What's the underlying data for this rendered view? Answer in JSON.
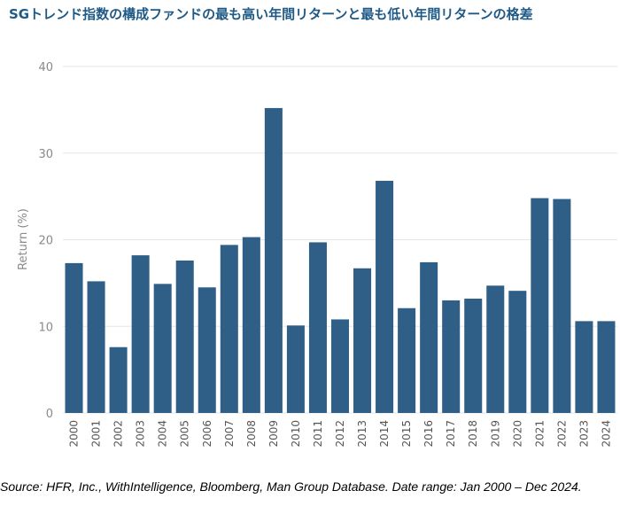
{
  "chart_data": {
    "type": "bar",
    "title": "SGトレンド指数の構成ファンドの最も高い年間リターンと最も低い年間リターンの格差",
    "xlabel": "",
    "ylabel": "Return (%)",
    "ylim": [
      0,
      40
    ],
    "yticks": [
      0,
      10,
      20,
      30,
      40
    ],
    "grid": true,
    "legend": "none",
    "categories": [
      "2000",
      "2001",
      "2002",
      "2003",
      "2004",
      "2005",
      "2006",
      "2007",
      "2008",
      "2009",
      "2010",
      "2011",
      "2012",
      "2013",
      "2014",
      "2015",
      "2016",
      "2017",
      "2018",
      "2019",
      "2020",
      "2021",
      "2022",
      "2023",
      "2024"
    ],
    "values": [
      17.3,
      15.2,
      7.6,
      18.2,
      14.9,
      17.6,
      14.5,
      19.4,
      20.3,
      35.2,
      10.1,
      19.7,
      10.8,
      16.7,
      26.8,
      12.1,
      17.4,
      13.0,
      13.2,
      14.7,
      14.1,
      24.8,
      24.7,
      10.6,
      10.6
    ]
  },
  "colors": {
    "bar": "#2f5f86",
    "title": "#1f5a86",
    "grid": "#e6e6e6",
    "axis_text": "#8a8a8a"
  },
  "source": "Source: HFR, Inc., WithIntelligence, Bloomberg, Man Group Database. Date range: Jan 2000 – Dec 2024."
}
